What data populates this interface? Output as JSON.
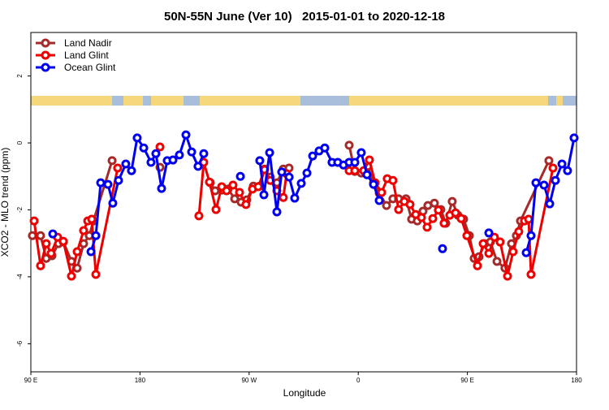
{
  "chart_data": {
    "type": "line",
    "title": "50N-55N June (Ver 10)   2015-01-01 to 2020-12-18",
    "xlabel": "Longitude",
    "ylabel": "XCO2 - MLO trend (ppm)",
    "xlim": [
      90,
      540
    ],
    "ylim": [
      -6.84,
      3.3
    ],
    "xticks": [
      {
        "value": 90,
        "label": "90 E"
      },
      180,
      {
        "value": 270,
        "label": "90 W"
      },
      {
        "value": 360,
        "label": "0"
      },
      {
        "value": 450,
        "label": "90 E"
      },
      {
        "value": 540,
        "label": "180"
      }
    ],
    "yticks": [
      2,
      0,
      -2,
      -4,
      -6
    ],
    "legend": "top-left",
    "series": [
      {
        "name": "Land Nadir",
        "color": "#a52a2a",
        "x": [
          91.3,
          98.0,
          102.7,
          107.4,
          112.8,
          116.8,
          123.5,
          128.2,
          133.5,
          138.2,
          141.6,
          157.0,
          null,
          196.5,
          null,
          238.0,
          242.0,
          247.4,
          252.7,
          258.1,
          263.4,
          268.1,
          273.5,
          278.8,
          282.8,
          287.5,
          292.9,
          298.2,
          302.9,
          null,
          352.5,
          357.2,
          362.5,
          367.9,
          372.6,
          377.3,
          383.3,
          388.6,
          393.3,
          399.4,
          404.0,
          408.7,
          413.4,
          417.4,
          422.8,
          428.1,
          432.2,
          437.5,
          442.2,
          446.9,
          451.6,
          455.6,
          459.6,
          464.3,
          469.0,
          474.4,
          481.0,
          486.4,
          490.4,
          493.8,
          517.2
        ],
        "values": [
          -2.77,
          -2.77,
          -3.45,
          -3.37,
          -3.01,
          -2.96,
          -3.54,
          -3.74,
          -3.01,
          -2.77,
          -2.33,
          -0.53,
          null,
          -0.73,
          null,
          -1.19,
          -1.43,
          -1.41,
          -1.38,
          -1.67,
          -1.77,
          -1.7,
          -1.29,
          -1.29,
          -0.78,
          -1.02,
          -1.19,
          -0.78,
          -0.75,
          null,
          -0.07,
          -0.85,
          -0.9,
          -0.7,
          -1.19,
          -1.5,
          -1.87,
          -1.67,
          -1.67,
          -1.67,
          -2.28,
          -2.33,
          -2.04,
          -1.87,
          -1.8,
          -1.99,
          -2.4,
          -1.75,
          -2.16,
          -2.28,
          -2.77,
          -3.45,
          -3.4,
          -3.01,
          -2.96,
          -3.54,
          -3.74,
          -3.01,
          -2.77,
          -2.33,
          -0.53
        ]
      },
      {
        "name": "Land Glint",
        "color": "#ee0000",
        "x": [
          92.7,
          98.0,
          102.7,
          106.7,
          112.1,
          116.8,
          123.5,
          128.2,
          133.5,
          136.9,
          140.2,
          143.6,
          161.6,
          null,
          196.5,
          null,
          228.6,
          232.6,
          237.3,
          242.7,
          247.4,
          251.4,
          256.7,
          262.1,
          267.4,
          272.8,
          277.5,
          282.8,
          287.5,
          292.9,
          298.2,
          300.9,
          null,
          352.5,
          357.2,
          364.5,
          369.2,
          373.9,
          379.3,
          383.9,
          388.6,
          393.3,
          398.0,
          402.7,
          407.4,
          412.1,
          416.8,
          421.5,
          426.1,
          430.8,
          435.5,
          440.2,
          444.9,
          449.6,
          458.3,
          463.0,
          467.7,
          472.3,
          477.0,
          483.1,
          487.7,
          492.4,
          497.1,
          500.5,
          502.5,
          520.6
        ],
        "values": [
          -2.33,
          -3.67,
          -3.01,
          -3.3,
          -2.82,
          -2.94,
          -3.98,
          -3.25,
          -2.62,
          -2.33,
          -2.28,
          -3.93,
          -0.75,
          null,
          -0.12,
          null,
          -2.18,
          -0.58,
          -1.17,
          -1.99,
          -1.31,
          -1.43,
          -1.26,
          -1.48,
          -1.84,
          -1.38,
          -1.31,
          -0.8,
          -1.12,
          -1.43,
          -1.63,
          -0.92,
          null,
          -0.83,
          -0.83,
          -0.83,
          -0.51,
          -1.19,
          -1.48,
          -1.07,
          -1.12,
          -1.99,
          -1.75,
          -1.84,
          -2.14,
          -2.23,
          -2.52,
          -2.26,
          -2.01,
          -2.4,
          -2.16,
          -2.09,
          -2.26,
          -2.77,
          -3.67,
          -3.01,
          -3.3,
          -2.82,
          -2.96,
          -3.98,
          -3.25,
          -2.65,
          -2.33,
          -2.28,
          -3.93,
          -0.75
        ]
      },
      {
        "name": "Ocean Glint",
        "color": "#0000ee",
        "x": [
          108.1,
          null,
          139.6,
          143.6,
          147.6,
          153.6,
          157.6,
          162.3,
          168.3,
          173.0,
          177.7,
          183.1,
          189.1,
          193.1,
          197.8,
          202.5,
          207.2,
          212.5,
          217.9,
          222.6,
          227.9,
          232.6,
          null,
          262.8,
          null,
          278.8,
          282.2,
          286.9,
          292.9,
          296.9,
          303.0,
          307.6,
          313.0,
          317.7,
          322.4,
          327.7,
          332.4,
          338.4,
          343.1,
          347.8,
          352.5,
          357.2,
          362.5,
          367.2,
          372.6,
          377.3,
          null,
          429.5,
          null,
          467.7,
          null,
          498.5,
          502.5,
          506.5,
          513.2,
          517.9,
          522.6,
          528.0,
          532.6,
          538.0
        ],
        "values": [
          -2.72,
          null,
          -3.25,
          -2.77,
          -1.19,
          -1.24,
          -1.8,
          -1.12,
          -0.63,
          -0.83,
          0.15,
          -0.15,
          -0.58,
          -0.32,
          -1.36,
          -0.53,
          -0.51,
          -0.36,
          0.24,
          -0.27,
          -0.7,
          -0.32,
          null,
          -1.0,
          null,
          -0.53,
          -1.55,
          -0.29,
          -2.06,
          -0.87,
          -1.02,
          -1.65,
          -1.21,
          -0.9,
          -0.39,
          -0.24,
          -0.15,
          -0.58,
          -0.58,
          -0.66,
          -0.58,
          -0.58,
          -0.29,
          -0.95,
          -1.24,
          -1.72,
          null,
          -3.16,
          null,
          -2.69,
          null,
          -3.28,
          -2.77,
          -1.19,
          -1.26,
          -1.82,
          -1.12,
          -0.63,
          -0.83,
          0.15
        ]
      }
    ]
  }
}
